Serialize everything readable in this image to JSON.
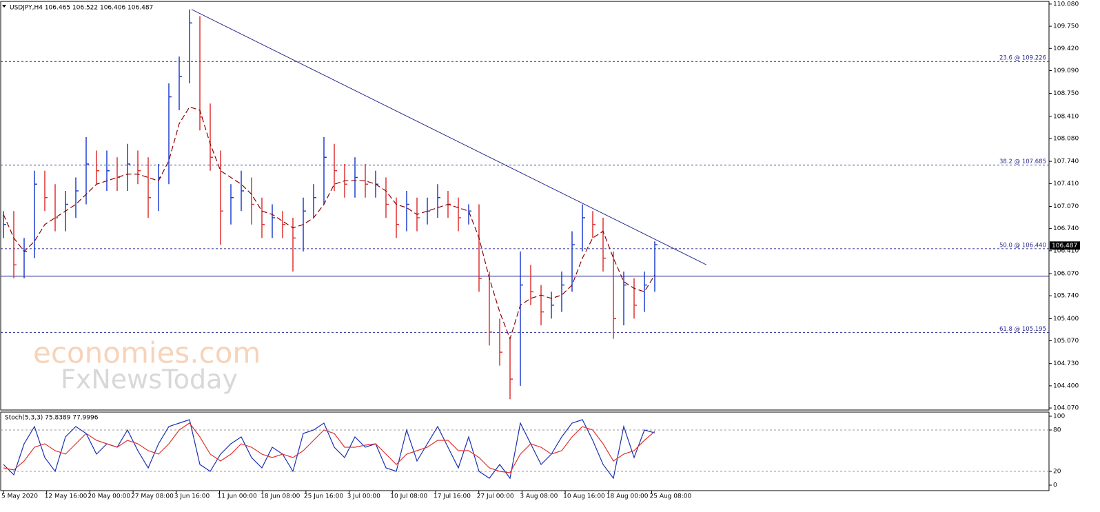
{
  "chart_data": [
    {
      "type": "ohlc",
      "title": "USDJPY,H4  106.465 106.522 106.406 106.487",
      "ylim": [
        104.04,
        110.12
      ],
      "yticks": [
        {
          "value": 110.08,
          "label": "110.080"
        },
        {
          "value": 109.75,
          "label": "109.750"
        },
        {
          "value": 109.42,
          "label": "109.420"
        },
        {
          "value": 109.09,
          "label": "109.090"
        },
        {
          "value": 108.75,
          "label": "108.750"
        },
        {
          "value": 108.41,
          "label": "108.410"
        },
        {
          "value": 108.08,
          "label": "108.080"
        },
        {
          "value": 107.74,
          "label": "107.740"
        },
        {
          "value": 107.41,
          "label": "107.410"
        },
        {
          "value": 107.07,
          "label": "107.070"
        },
        {
          "value": 106.74,
          "label": "106.740"
        },
        {
          "value": 106.41,
          "label": "106.410"
        },
        {
          "value": 106.07,
          "label": "106.070"
        },
        {
          "value": 105.74,
          "label": "105.740"
        },
        {
          "value": 105.4,
          "label": "105.400"
        },
        {
          "value": 105.07,
          "label": "105.070"
        },
        {
          "value": 104.73,
          "label": "104.730"
        },
        {
          "value": 104.4,
          "label": "104.400"
        },
        {
          "value": 104.07,
          "label": "104.070"
        }
      ],
      "high": [
        107.0,
        107.0,
        106.6,
        107.6,
        107.6,
        107.4,
        107.3,
        107.5,
        108.1,
        107.9,
        107.9,
        107.8,
        108.0,
        107.9,
        107.8,
        107.7,
        108.9,
        109.3,
        110.0,
        109.9,
        108.6,
        107.9,
        107.4,
        107.6,
        107.5,
        107.2,
        107.1,
        107.0,
        106.9,
        107.2,
        107.4,
        108.1,
        108.0,
        107.7,
        107.8,
        107.7,
        107.6,
        107.5,
        107.2,
        107.3,
        107.2,
        107.2,
        107.4,
        107.3,
        107.2,
        107.1,
        107.1,
        106.1,
        105.4,
        105.1,
        106.4,
        106.2,
        105.9,
        105.8,
        106.1,
        106.7,
        107.1,
        107.0,
        106.9,
        106.4,
        106.1,
        106.0,
        106.1,
        106.55
      ],
      "low": [
        106.6,
        106.0,
        106.0,
        106.3,
        107.0,
        106.7,
        106.7,
        106.9,
        107.1,
        107.4,
        107.3,
        107.3,
        107.3,
        107.4,
        106.9,
        107.0,
        107.4,
        108.5,
        108.9,
        108.2,
        107.6,
        106.5,
        106.8,
        107.0,
        106.8,
        106.6,
        106.6,
        106.6,
        106.1,
        106.4,
        106.9,
        107.1,
        107.3,
        107.2,
        107.2,
        107.2,
        107.2,
        106.9,
        106.6,
        106.7,
        106.7,
        106.8,
        106.9,
        106.9,
        106.7,
        106.8,
        105.8,
        105.0,
        104.7,
        104.2,
        104.4,
        105.6,
        105.3,
        105.4,
        105.5,
        105.8,
        106.4,
        106.6,
        106.1,
        105.1,
        105.3,
        105.4,
        105.5,
        105.8
      ],
      "close": [
        106.8,
        106.2,
        106.4,
        107.4,
        107.2,
        106.9,
        107.1,
        107.3,
        107.7,
        107.6,
        107.6,
        107.5,
        107.7,
        107.6,
        107.2,
        107.5,
        108.7,
        109.0,
        109.8,
        108.4,
        107.8,
        107.0,
        107.2,
        107.3,
        107.1,
        106.8,
        106.9,
        106.8,
        106.6,
        107.0,
        107.2,
        107.8,
        107.6,
        107.4,
        107.5,
        107.4,
        107.4,
        107.1,
        106.8,
        107.1,
        106.9,
        107.0,
        107.2,
        107.1,
        106.9,
        107.0,
        106.0,
        105.2,
        104.9,
        104.5,
        105.9,
        105.8,
        105.5,
        105.6,
        105.9,
        106.5,
        106.9,
        106.8,
        106.3,
        105.4,
        105.9,
        105.6,
        105.9,
        106.5
      ],
      "up_color": "#1f3fd0",
      "down_color": "#e03030",
      "ma": {
        "color": "#8b0000",
        "values": [
          106.95,
          106.6,
          106.4,
          106.55,
          106.8,
          106.9,
          107.0,
          107.1,
          107.25,
          107.4,
          107.45,
          107.5,
          107.55,
          107.55,
          107.5,
          107.45,
          107.75,
          108.3,
          108.55,
          108.5,
          108.0,
          107.6,
          107.5,
          107.4,
          107.25,
          107.0,
          106.95,
          106.85,
          106.75,
          106.8,
          106.9,
          107.1,
          107.4,
          107.45,
          107.45,
          107.45,
          107.4,
          107.3,
          107.1,
          107.05,
          106.95,
          107.0,
          107.05,
          107.1,
          107.05,
          107.0,
          106.6,
          106.0,
          105.5,
          105.1,
          105.6,
          105.7,
          105.75,
          105.7,
          105.75,
          105.9,
          106.3,
          106.6,
          106.7,
          106.3,
          105.95,
          105.85,
          105.8,
          106.05
        ]
      },
      "fib_levels": [
        {
          "value": 109.226,
          "label": "23.6 @ 109.226"
        },
        {
          "value": 107.685,
          "label": "38.2 @ 107.685"
        },
        {
          "value": 106.44,
          "label": "50.0 @ 106.440"
        },
        {
          "value": 105.195,
          "label": "61.8 @ 105.195"
        }
      ],
      "support": 106.03,
      "trendline": [
        110.0,
        106.2
      ],
      "last_price": 106.487,
      "watermark": [
        "economies.com",
        "FxNewsToday"
      ]
    },
    {
      "type": "line",
      "title": "Stoch(5,3,3) 75.8389 77.9996",
      "ylim": [
        -8,
        106
      ],
      "yticks": [
        100,
        80,
        20,
        0
      ],
      "levels": [
        80,
        20
      ],
      "series": [
        {
          "name": "Main",
          "color": "#1a2fb0",
          "values": [
            30,
            15,
            60,
            85,
            40,
            20,
            70,
            85,
            75,
            45,
            60,
            55,
            80,
            50,
            25,
            60,
            85,
            90,
            95,
            30,
            20,
            45,
            60,
            70,
            40,
            25,
            55,
            45,
            20,
            75,
            80,
            90,
            55,
            40,
            70,
            55,
            60,
            25,
            20,
            80,
            35,
            60,
            85,
            55,
            25,
            70,
            20,
            10,
            30,
            10,
            90,
            60,
            30,
            45,
            70,
            90,
            95,
            65,
            30,
            10,
            85,
            40,
            80,
            75.8389
          ]
        },
        {
          "name": "Signal",
          "color": "#e03030",
          "values": [
            25,
            22,
            35,
            55,
            60,
            50,
            45,
            60,
            75,
            65,
            60,
            55,
            65,
            60,
            50,
            45,
            60,
            80,
            90,
            70,
            45,
            35,
            45,
            60,
            55,
            45,
            40,
            45,
            40,
            50,
            65,
            80,
            75,
            55,
            55,
            58,
            60,
            45,
            30,
            45,
            50,
            55,
            65,
            65,
            50,
            50,
            40,
            25,
            20,
            18,
            45,
            60,
            55,
            45,
            50,
            70,
            85,
            80,
            60,
            35,
            45,
            50,
            65,
            77.9996
          ]
        }
      ],
      "x_labels": [
        "5 May 2020",
        "12 May 16:00",
        "20 May 00:00",
        "27 May 08:00",
        "3 Jun 16:00",
        "11 Jun 00:00",
        "18 Jun 08:00",
        "25 Jun 16:00",
        "3 Jul 00:00",
        "10 Jul 08:00",
        "17 Jul 16:00",
        "27 Jul 00:00",
        "3 Aug 08:00",
        "10 Aug 16:00",
        "18 Aug 00:00",
        "25 Aug 08:00"
      ]
    }
  ]
}
